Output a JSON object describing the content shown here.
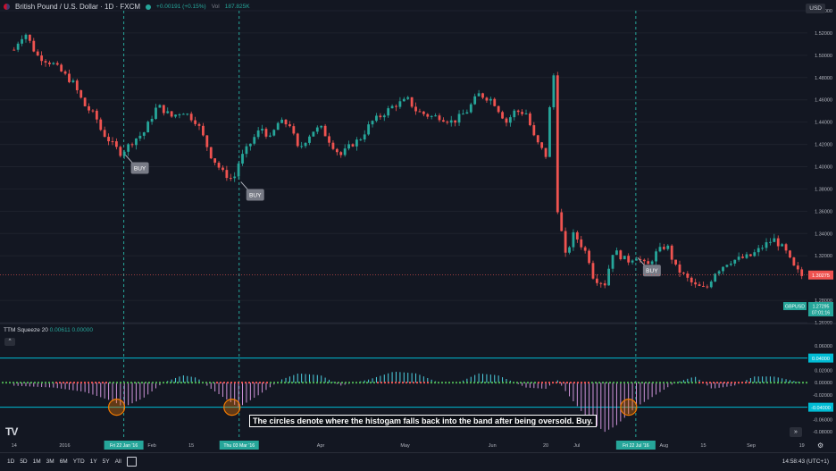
{
  "header": {
    "symbol": "British Pound / U.S. Dollar · 1D · FXCM",
    "change": "+0.00191 (+0.15%)",
    "vol_label": "Vol",
    "vol_value": "187.825K"
  },
  "currency": "USD",
  "indicator": {
    "name": "TTM Squeeze 20",
    "v1": "0.00611",
    "v2": "0.00000"
  },
  "annotation": "The circles denote where the histogam falls back into the band after being oversold. Buy.",
  "bottom": {
    "ranges": [
      "1D",
      "5D",
      "1M",
      "3M",
      "6M",
      "YTD",
      "1Y",
      "5Y",
      "All"
    ],
    "time": "14:58:43 (UTC+1)"
  },
  "logo": "TV",
  "colors": {
    "bg": "#131722",
    "up": "#26a69a",
    "down": "#ef5350",
    "grid": "#1e222d",
    "vline": "#26a69a",
    "band": "#00bcd4",
    "hist_neg": "#ce93d8",
    "hist_pos": "#4dd0e1",
    "tag": "#26a69a",
    "label_bg": "#787b86",
    "circle": "#f57c00"
  },
  "chart_data": {
    "type": "candlestick",
    "symbol": "GBPUSD",
    "price_axis": {
      "ticks": [
        "1.54000",
        "1.52000",
        "1.50000",
        "1.48000",
        "1.46000",
        "1.44000",
        "1.42000",
        "1.40000",
        "1.38000",
        "1.36000",
        "1.34000",
        "1.32000",
        "1.30275",
        "1.28000",
        "1.26000"
      ],
      "range": [
        1.26,
        1.54
      ],
      "last_price_label": "1.30275",
      "symbol_tag": "GBPUSD",
      "symbol_price": "1.27295",
      "countdown": "07:01:16"
    },
    "x_axis": {
      "ticks": [
        "14",
        "2016",
        "Feb",
        "15",
        "Mar",
        "Apr",
        "May",
        "Jun",
        "20",
        "Jul",
        "Aug",
        "15",
        "Sep",
        "19"
      ],
      "date_tags": [
        "Fri 22 Jan '16",
        "Thu 03 Mar '16",
        "Fri 22 Jul '16"
      ]
    },
    "close_path": [
      [
        "2015-12-14",
        1.505
      ],
      [
        "2015-12-16",
        1.515
      ],
      [
        "2015-12-18",
        1.52
      ],
      [
        "2015-12-22",
        1.5
      ],
      [
        "2015-12-28",
        1.492
      ],
      [
        "2016-01-04",
        1.475
      ],
      [
        "2016-01-08",
        1.455
      ],
      [
        "2016-01-12",
        1.445
      ],
      [
        "2016-01-14",
        1.432
      ],
      [
        "2016-01-18",
        1.42
      ],
      [
        "2016-01-21",
        1.412
      ],
      [
        "2016-01-26",
        1.425
      ],
      [
        "2016-01-29",
        1.43
      ],
      [
        "2016-02-03",
        1.455
      ],
      [
        "2016-02-08",
        1.445
      ],
      [
        "2016-02-12",
        1.45
      ],
      [
        "2016-02-17",
        1.44
      ],
      [
        "2016-02-22",
        1.41
      ],
      [
        "2016-02-26",
        1.395
      ],
      [
        "2016-03-01",
        1.388
      ],
      [
        "2016-03-03",
        1.405
      ],
      [
        "2016-03-08",
        1.425
      ],
      [
        "2016-03-11",
        1.435
      ],
      [
        "2016-03-14",
        1.425
      ],
      [
        "2016-03-17",
        1.44
      ],
      [
        "2016-03-21",
        1.438
      ],
      [
        "2016-03-24",
        1.415
      ],
      [
        "2016-03-29",
        1.432
      ],
      [
        "2016-04-01",
        1.435
      ],
      [
        "2016-04-05",
        1.42
      ],
      [
        "2016-04-08",
        1.41
      ],
      [
        "2016-04-12",
        1.42
      ],
      [
        "2016-04-15",
        1.425
      ],
      [
        "2016-04-19",
        1.44
      ],
      [
        "2016-04-22",
        1.445
      ],
      [
        "2016-04-27",
        1.455
      ],
      [
        "2016-05-02",
        1.46
      ],
      [
        "2016-05-05",
        1.45
      ],
      [
        "2016-05-10",
        1.445
      ],
      [
        "2016-05-13",
        1.445
      ],
      [
        "2016-05-18",
        1.44
      ],
      [
        "2016-05-23",
        1.45
      ],
      [
        "2016-05-27",
        1.465
      ],
      [
        "2016-06-01",
        1.46
      ],
      [
        "2016-06-06",
        1.44
      ],
      [
        "2016-06-09",
        1.45
      ],
      [
        "2016-06-13",
        1.448
      ],
      [
        "2016-06-16",
        1.425
      ],
      [
        "2016-06-20",
        1.41
      ],
      [
        "2016-06-22",
        1.47
      ],
      [
        "2016-06-23",
        1.485
      ],
      [
        "2016-06-24",
        1.365
      ],
      [
        "2016-06-27",
        1.32
      ],
      [
        "2016-06-30",
        1.34
      ],
      [
        "2016-07-05",
        1.32
      ],
      [
        "2016-07-07",
        1.3
      ],
      [
        "2016-07-11",
        1.295
      ],
      [
        "2016-07-14",
        1.325
      ],
      [
        "2016-07-19",
        1.315
      ],
      [
        "2016-07-22",
        1.32
      ],
      [
        "2016-07-26",
        1.31
      ],
      [
        "2016-07-29",
        1.322
      ],
      [
        "2016-08-02",
        1.33
      ],
      [
        "2016-08-05",
        1.31
      ],
      [
        "2016-08-09",
        1.3
      ],
      [
        "2016-08-12",
        1.293
      ],
      [
        "2016-08-16",
        1.29
      ],
      [
        "2016-08-19",
        1.305
      ],
      [
        "2016-08-24",
        1.315
      ],
      [
        "2016-08-29",
        1.318
      ],
      [
        "2016-09-01",
        1.32
      ],
      [
        "2016-09-06",
        1.33
      ],
      [
        "2016-09-09",
        1.335
      ],
      [
        "2016-09-13",
        1.325
      ],
      [
        "2016-09-16",
        1.31
      ],
      [
        "2016-09-19",
        1.302
      ]
    ],
    "signals": [
      {
        "label": "BUY",
        "date": "2016-01-22",
        "price": 1.412
      },
      {
        "label": "BUY",
        "date": "2016-03-03",
        "price": 1.388
      },
      {
        "label": "BUY",
        "date": "2016-07-22",
        "price": 1.32
      }
    ],
    "indicator_axis": {
      "ticks": [
        "0.06000",
        "0.04000",
        "0.02000",
        "0.00000",
        "-0.02000",
        "-0.04000",
        "-0.06000",
        "-0.08000"
      ],
      "range": [
        -0.09,
        0.07
      ],
      "band_upper": 0.04,
      "band_lower": -0.04,
      "band_upper_label": "0.04000",
      "band_lower_label": "-0.04000"
    },
    "histogram_path": [
      [
        "2015-12-14",
        -0.005
      ],
      [
        "2015-12-28",
        -0.008
      ],
      [
        "2016-01-08",
        -0.015
      ],
      [
        "2016-01-18",
        -0.03
      ],
      [
        "2016-01-22",
        -0.04
      ],
      [
        "2016-01-29",
        -0.025
      ],
      [
        "2016-02-05",
        0.0
      ],
      [
        "2016-02-12",
        0.012
      ],
      [
        "2016-02-17",
        0.008
      ],
      [
        "2016-02-22",
        -0.01
      ],
      [
        "2016-03-01",
        -0.035
      ],
      [
        "2016-03-03",
        -0.04
      ],
      [
        "2016-03-10",
        -0.02
      ],
      [
        "2016-03-18",
        0.005
      ],
      [
        "2016-03-24",
        0.015
      ],
      [
        "2016-04-01",
        0.012
      ],
      [
        "2016-04-08",
        -0.005
      ],
      [
        "2016-04-18",
        0.005
      ],
      [
        "2016-04-27",
        0.018
      ],
      [
        "2016-05-05",
        0.015
      ],
      [
        "2016-05-13",
        0.0
      ],
      [
        "2016-05-20",
        0.0
      ],
      [
        "2016-05-27",
        0.015
      ],
      [
        "2016-06-03",
        0.012
      ],
      [
        "2016-06-13",
        -0.008
      ],
      [
        "2016-06-20",
        -0.01
      ],
      [
        "2016-06-24",
        0.005
      ],
      [
        "2016-06-28",
        -0.02
      ],
      [
        "2016-07-05",
        -0.06
      ],
      [
        "2016-07-11",
        -0.08
      ],
      [
        "2016-07-15",
        -0.07
      ],
      [
        "2016-07-22",
        -0.04
      ],
      [
        "2016-07-29",
        -0.02
      ],
      [
        "2016-08-05",
        0.0
      ],
      [
        "2016-08-12",
        0.01
      ],
      [
        "2016-08-18",
        -0.01
      ],
      [
        "2016-08-26",
        -0.005
      ],
      [
        "2016-09-02",
        0.01
      ],
      [
        "2016-09-09",
        0.01
      ],
      [
        "2016-09-19",
        0.0
      ]
    ],
    "circles": [
      {
        "date": "2016-01-22",
        "value": -0.04
      },
      {
        "date": "2016-03-03",
        "value": -0.04
      },
      {
        "date": "2016-07-22",
        "value": -0.04
      }
    ]
  }
}
